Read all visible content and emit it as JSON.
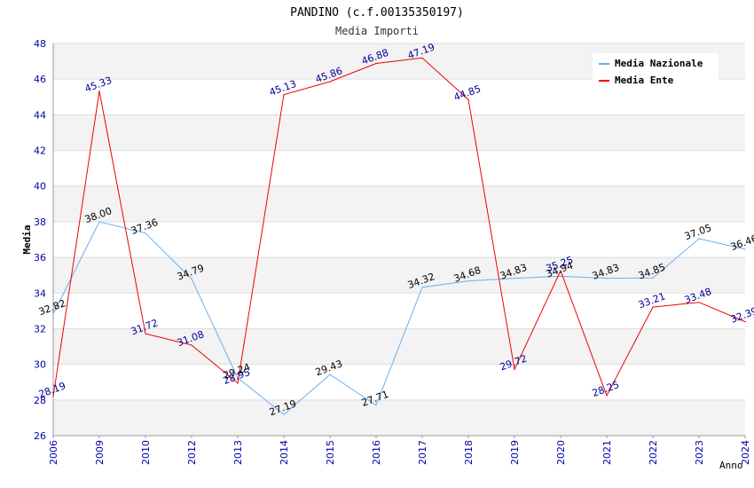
{
  "chart_data": {
    "type": "line",
    "title": "PANDINO (c.f.00135350197)",
    "subtitle": "Media Importi",
    "ylabel": "Media",
    "xlabel": "Anno",
    "ylim": [
      26,
      48
    ],
    "yticks": [
      26,
      28,
      30,
      32,
      34,
      36,
      38,
      40,
      42,
      44,
      46,
      48
    ],
    "categories": [
      "2006",
      "2009",
      "2010",
      "2012",
      "2013",
      "2014",
      "2015",
      "2016",
      "2017",
      "2018",
      "2019",
      "2020",
      "2021",
      "2022",
      "2023",
      "2024"
    ],
    "legend_position": "top-right",
    "series": [
      {
        "name": "Media Nazionale",
        "color": "#6aaeef",
        "label_color": "#000000",
        "values": [
          32.82,
          38.0,
          37.36,
          34.79,
          29.24,
          27.19,
          29.43,
          27.71,
          34.32,
          34.68,
          34.83,
          34.94,
          34.83,
          34.85,
          37.05,
          36.46
        ],
        "labels": [
          "32.82",
          "38.00",
          "37.36",
          "34.79",
          "29.24",
          "27.19",
          "29.43",
          "27.71",
          "34.32",
          "34.68",
          "34.83",
          "34.94",
          "34.83",
          "34.85",
          "37.05",
          "36.46"
        ]
      },
      {
        "name": "Media Ente",
        "color": "#ee0000",
        "label_color": "#000099",
        "values": [
          28.19,
          45.33,
          31.72,
          31.08,
          28.95,
          45.13,
          45.86,
          46.88,
          47.19,
          44.85,
          29.72,
          35.25,
          28.25,
          33.21,
          33.48,
          32.39
        ],
        "labels": [
          "28.19",
          "45.33",
          "31.72",
          "31.08",
          "28.95",
          "45.13",
          "45.86",
          "46.88",
          "47.19",
          "44.85",
          "29.72",
          "35.25",
          "28.25",
          "33.21",
          "33.48",
          "32.39"
        ]
      }
    ]
  }
}
